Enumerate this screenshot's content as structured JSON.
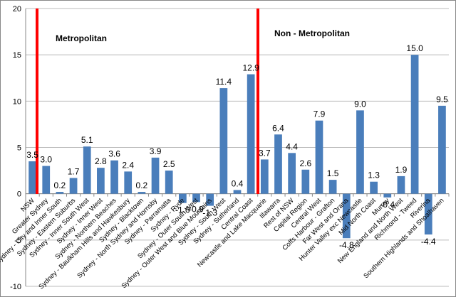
{
  "chart_data": {
    "type": "bar",
    "categories": [
      "NSW",
      "Greater Sydney",
      "Sydney - City and Inner South",
      "Sydney - Eastern Suburbs",
      "Sydney - Inner South West",
      "Sydney - Inner West",
      "Sydney - Northern Beaches",
      "Sydney - Baulkham Hills and Hawkesbury",
      "Sydney - Blacktown",
      "Sydney - North Sydney and Hornsby",
      "Sydney - Parramatta",
      "Sydney - Ryde",
      "Sydney - Outer South West",
      "Sydney - Outer West and Blue Mountains",
      "Sydney - South West",
      "Sydney - Sutherland",
      "Central Coast",
      "Newcastle and Lake Macquarie",
      "Illawarra",
      "Rest of NSW",
      "Capital Region",
      "Central West",
      "Coffs Harbour - Grafton",
      "Far West and Orana",
      "Hunter Valley exc Newcastle",
      "Mid North Coast",
      "Murray",
      "New England and North West",
      "Richmond - Tweed",
      "Riverina",
      "Southern Highlands and Shoalhaven"
    ],
    "values": [
      3.5,
      3.0,
      0.2,
      1.7,
      5.1,
      2.8,
      3.6,
      2.4,
      0.2,
      3.9,
      2.5,
      -1.0,
      -0.9,
      -1.3,
      11.4,
      0.4,
      12.9,
      3.7,
      6.4,
      4.4,
      2.6,
      7.9,
      1.5,
      -4.8,
      9.0,
      1.3,
      -0.4,
      1.9,
      15.0,
      -4.4,
      9.5
    ],
    "value_labels": [
      "3.5",
      "3.0",
      "0.2",
      "1.7",
      "5.1",
      "2.8",
      "3.6",
      "2.4",
      "0.2",
      "3.9",
      "2.5",
      "-1.0",
      "-0.9",
      "-1.3",
      "11.4",
      "0.4",
      "12.9",
      "3.7",
      "6.4",
      "4.4",
      "2.6",
      "7.9",
      "1.5",
      "-4.8",
      "9.0",
      "1.3",
      "-0.4",
      "1.9",
      "15.0",
      "-4.4",
      "9.5"
    ],
    "color": "#4a7ebb",
    "ylim": [
      -10,
      20
    ],
    "yticks": [
      -10,
      -5,
      0,
      5,
      10,
      15,
      20
    ],
    "grid": true,
    "annotations": [
      "Metropolitan",
      "Non - Metropolitan"
    ]
  }
}
